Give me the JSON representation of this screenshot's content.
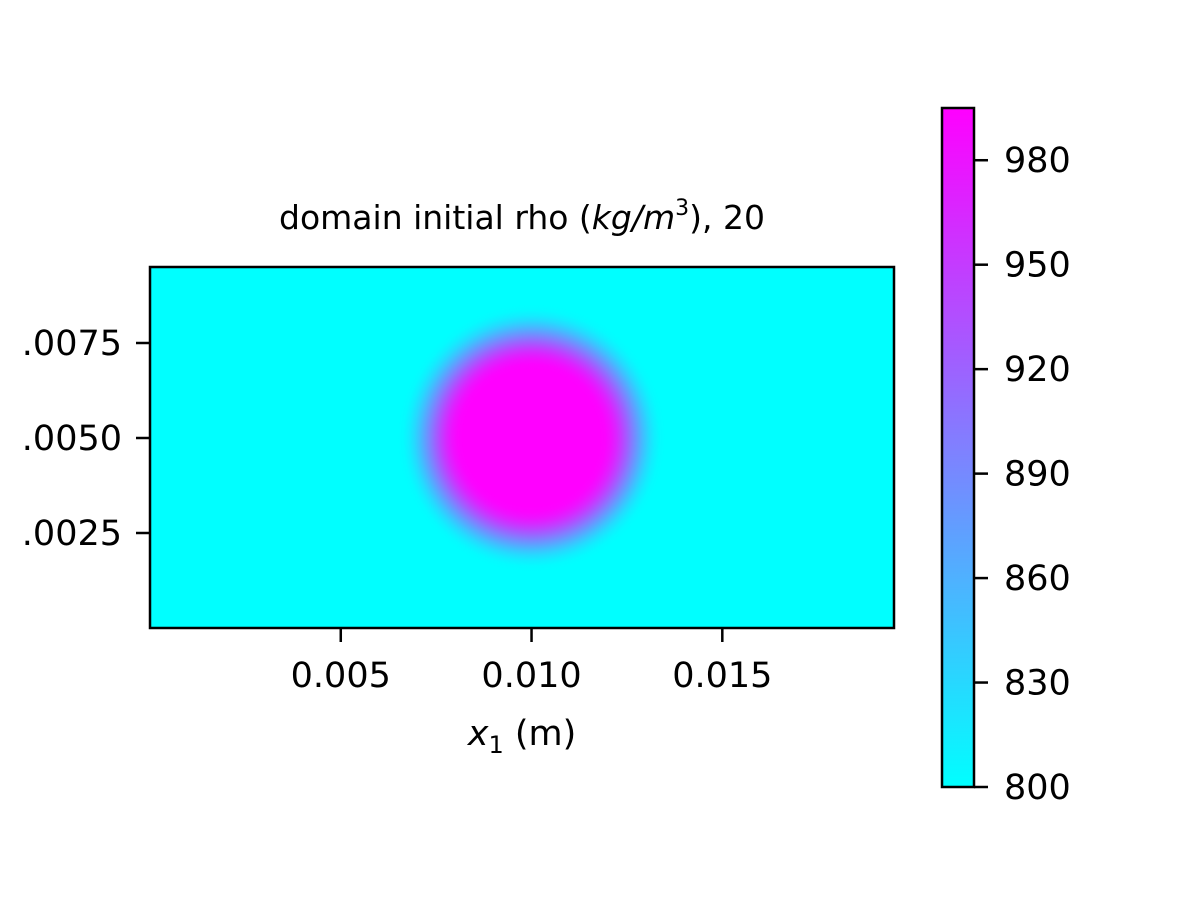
{
  "chart_data": {
    "type": "heatmap",
    "title": {
      "prefix": "domain initial rho (",
      "unit_italic_base": "kg/m",
      "unit_superscript": "3",
      "suffix": "), 20"
    },
    "xlabel": {
      "var_italic": "x",
      "subscript": "1",
      "unit": " (m)"
    },
    "ylabel": "",
    "xlim": [
      0.0,
      0.0195
    ],
    "ylim": [
      0.0,
      0.0095
    ],
    "x_ticks": [
      {
        "value": 0.005,
        "label": "0.005"
      },
      {
        "value": 0.01,
        "label": "0.010"
      },
      {
        "value": 0.015,
        "label": "0.015"
      }
    ],
    "y_ticks": [
      {
        "value": 0.0025,
        "label": ".0025"
      },
      {
        "value": 0.005,
        "label": ".0050"
      },
      {
        "value": 0.0075,
        "label": ".0075"
      }
    ],
    "field": {
      "description_values": "circular high-density region",
      "background_value": 800,
      "peak_value": 995,
      "center": [
        0.01,
        0.005
      ],
      "inner_radius": 0.0025,
      "outer_radius": 0.0035
    },
    "colorbar": {
      "range": [
        800,
        995
      ],
      "ticks": [
        {
          "value": 800,
          "label": "800"
        },
        {
          "value": 830,
          "label": "830"
        },
        {
          "value": 860,
          "label": "860"
        },
        {
          "value": 890,
          "label": "890"
        },
        {
          "value": 920,
          "label": "920"
        },
        {
          "value": 950,
          "label": "950"
        },
        {
          "value": 980,
          "label": "980"
        }
      ],
      "colormap": "cool",
      "low_color": "#00ffff",
      "high_color": "#ff00ff"
    }
  }
}
